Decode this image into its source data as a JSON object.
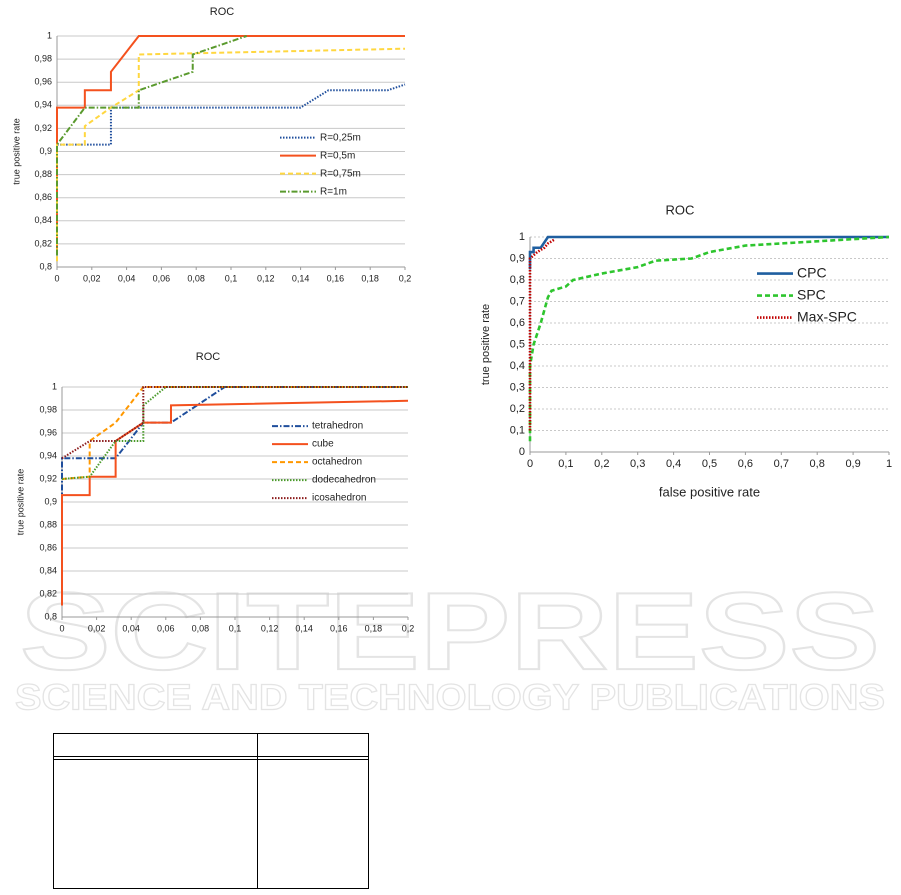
{
  "chart_data": [
    {
      "type": "line",
      "title": "ROC",
      "y_label": "true positive rate",
      "legend": "center right",
      "grid": true,
      "xlim": [
        0,
        0.2
      ],
      "ylim": [
        0.8,
        1
      ],
      "xticks": [
        0,
        {
          "value": 0.02,
          "label": "0,02"
        },
        {
          "value": 0.04,
          "label": "0,04"
        },
        {
          "value": 0.06,
          "label": "0,06"
        },
        {
          "value": 0.08,
          "label": "0,08"
        },
        {
          "value": 0.1,
          "label": "0,1"
        },
        {
          "value": 0.12,
          "label": "0,12"
        },
        {
          "value": 0.14,
          "label": "0,14"
        },
        {
          "value": 0.16,
          "label": "0,16"
        },
        {
          "value": 0.18,
          "label": "0,18"
        },
        {
          "value": 0.2,
          "label": "0,2"
        }
      ],
      "yticks": [
        {
          "value": 0.8,
          "label": "0,8"
        },
        {
          "value": 0.82,
          "label": "0,82"
        },
        {
          "value": 0.84,
          "label": "0,84"
        },
        {
          "value": 0.86,
          "label": "0,86"
        },
        {
          "value": 0.88,
          "label": "0,88"
        },
        {
          "value": 0.9,
          "label": "0,9"
        },
        {
          "value": 0.92,
          "label": "0,92"
        },
        {
          "value": 0.94,
          "label": "0,94"
        },
        {
          "value": 0.96,
          "label": "0,96"
        },
        {
          "value": 0.98,
          "label": "0,98"
        },
        1
      ],
      "series": [
        {
          "name": "R=0,25m",
          "color": "#1f4e9c",
          "style": "dotted",
          "x": [
            0,
            0,
            0.031,
            0.031,
            0.14,
            0.156,
            0.19,
            0.2
          ],
          "values": [
            0.81,
            0.906,
            0.906,
            0.938,
            0.938,
            0.953,
            0.953,
            0.958
          ]
        },
        {
          "name": "R=0,5m",
          "color": "#f4511e",
          "style": "solid",
          "x": [
            0,
            0,
            0.016,
            0.016,
            0.031,
            0.031,
            0.047,
            0.2
          ],
          "values": [
            0.81,
            0.938,
            0.938,
            0.953,
            0.953,
            0.969,
            1,
            1
          ]
        },
        {
          "name": "R=0,75m",
          "color": "#ffd740",
          "style": "dashed",
          "x": [
            0,
            0,
            0.016,
            0.016,
            0.031,
            0.047,
            0.047,
            0.2
          ],
          "values": [
            0.805,
            0.906,
            0.906,
            0.922,
            0.938,
            0.953,
            0.984,
            0.989
          ]
        },
        {
          "name": "R=1m",
          "color": "#5a9a2e",
          "style": "dashdot",
          "x": [
            0,
            0,
            0.016,
            0.047,
            0.047,
            0.078,
            0.078,
            0.109
          ],
          "values": [
            0.81,
            0.906,
            0.938,
            0.938,
            0.953,
            0.969,
            0.984,
            1
          ]
        }
      ]
    },
    {
      "type": "line",
      "title": "ROC",
      "y_label": "true positive rate",
      "legend": "upper right",
      "grid": true,
      "xlim": [
        0,
        0.2
      ],
      "ylim": [
        0.8,
        1
      ],
      "xticks": [
        0,
        {
          "value": 0.02,
          "label": "0,02"
        },
        {
          "value": 0.04,
          "label": "0,04"
        },
        {
          "value": 0.06,
          "label": "0,06"
        },
        {
          "value": 0.08,
          "label": "0,08"
        },
        {
          "value": 0.1,
          "label": "0,1"
        },
        {
          "value": 0.12,
          "label": "0,12"
        },
        {
          "value": 0.14,
          "label": "0,14"
        },
        {
          "value": 0.16,
          "label": "0,16"
        },
        {
          "value": 0.18,
          "label": "0,18"
        },
        {
          "value": 0.2,
          "label": "0,2"
        }
      ],
      "yticks": [
        {
          "value": 0.8,
          "label": "0,8"
        },
        {
          "value": 0.82,
          "label": "0,82"
        },
        {
          "value": 0.84,
          "label": "0,84"
        },
        {
          "value": 0.86,
          "label": "0,86"
        },
        {
          "value": 0.88,
          "label": "0,88"
        },
        {
          "value": 0.9,
          "label": "0,9"
        },
        {
          "value": 0.92,
          "label": "0,92"
        },
        {
          "value": 0.94,
          "label": "0,94"
        },
        {
          "value": 0.96,
          "label": "0,96"
        },
        {
          "value": 0.98,
          "label": "0,98"
        },
        1
      ],
      "series": [
        {
          "name": "tetrahedron",
          "color": "#1f4e9c",
          "style": "dashdot",
          "x": [
            0,
            0,
            0.031,
            0.047,
            0.063,
            0.094,
            0.2
          ],
          "values": [
            0.81,
            0.938,
            0.938,
            0.969,
            0.969,
            1,
            1
          ]
        },
        {
          "name": "cube",
          "color": "#f4511e",
          "style": "solid",
          "x": [
            0,
            0,
            0.016,
            0.016,
            0.031,
            0.031,
            0.047,
            0.063,
            0.063,
            0.2
          ],
          "values": [
            0.81,
            0.906,
            0.906,
            0.922,
            0.922,
            0.953,
            0.969,
            0.969,
            0.984,
            0.988
          ]
        },
        {
          "name": "octahedron",
          "color": "#ff9800",
          "style": "dashed",
          "x": [
            0,
            0.016,
            0.016,
            0.031,
            0.047,
            0.2
          ],
          "values": [
            0.92,
            0.922,
            0.953,
            0.969,
            1,
            1
          ]
        },
        {
          "name": "dodecahedron",
          "color": "#4a9a2a",
          "style": "dotted",
          "x": [
            0,
            0.016,
            0.031,
            0.047,
            0.047,
            0.06,
            0.2
          ],
          "values": [
            0.92,
            0.922,
            0.953,
            0.953,
            0.984,
            1,
            1
          ]
        },
        {
          "name": "icosahedron",
          "color": "#8b1a1a",
          "style": "dotted",
          "x": [
            0,
            0.016,
            0.031,
            0.047,
            0.047,
            0.2
          ],
          "values": [
            0.938,
            0.953,
            0.953,
            0.969,
            1,
            1
          ]
        }
      ]
    },
    {
      "type": "line",
      "title": "ROC",
      "y_label": "true positive rate",
      "x_label": "false positive rate",
      "legend": "upper right",
      "grid": true,
      "xlim": [
        0,
        1
      ],
      "ylim": [
        0,
        1
      ],
      "xticks": [
        0,
        {
          "value": 0.1,
          "label": "0,1"
        },
        {
          "value": 0.2,
          "label": "0,2"
        },
        {
          "value": 0.3,
          "label": "0,3"
        },
        {
          "value": 0.4,
          "label": "0,4"
        },
        {
          "value": 0.5,
          "label": "0,5"
        },
        {
          "value": 0.6,
          "label": "0,6"
        },
        {
          "value": 0.7,
          "label": "0,7"
        },
        {
          "value": 0.8,
          "label": "0,8"
        },
        {
          "value": 0.9,
          "label": "0,9"
        },
        1
      ],
      "yticks": [
        0,
        {
          "value": 0.1,
          "label": "0,1"
        },
        {
          "value": 0.2,
          "label": "0,2"
        },
        {
          "value": 0.3,
          "label": "0,3"
        },
        {
          "value": 0.4,
          "label": "0,4"
        },
        {
          "value": 0.5,
          "label": "0,5"
        },
        {
          "value": 0.6,
          "label": "0,6"
        },
        {
          "value": 0.7,
          "label": "0,7"
        },
        {
          "value": 0.8,
          "label": "0,8"
        },
        {
          "value": 0.9,
          "label": "0,9"
        },
        1
      ],
      "series": [
        {
          "name": "CPC",
          "color": "#1f5fa0",
          "style": "solid",
          "x": [
            0,
            0,
            0.01,
            0.01,
            0.03,
            0.05,
            1
          ],
          "values": [
            0.85,
            0.93,
            0.93,
            0.95,
            0.95,
            1,
            1
          ]
        },
        {
          "name": "SPC",
          "color": "#2ec52e",
          "style": "dashed",
          "x": [
            0,
            0,
            0.01,
            0.03,
            0.05,
            0.06,
            0.1,
            0.12,
            0.2,
            0.3,
            0.35,
            0.45,
            0.5,
            0.6,
            0.7,
            0.8,
            0.9,
            1
          ],
          "values": [
            0.05,
            0.4,
            0.5,
            0.6,
            0.72,
            0.75,
            0.77,
            0.8,
            0.83,
            0.86,
            0.89,
            0.9,
            0.93,
            0.96,
            0.97,
            0.98,
            0.99,
            1
          ]
        },
        {
          "name": "Max-SPC",
          "color": "#c00000",
          "style": "dotted",
          "x": [
            0,
            0,
            0.02,
            0.04,
            0.05,
            0.07
          ],
          "values": [
            0.1,
            0.9,
            0.93,
            0.95,
            0.97,
            0.99
          ]
        }
      ]
    }
  ],
  "watermark": {
    "title": "SCITEPRESS",
    "subtitle": "SCIENCE AND TECHNOLOGY PUBLICATIONS"
  }
}
